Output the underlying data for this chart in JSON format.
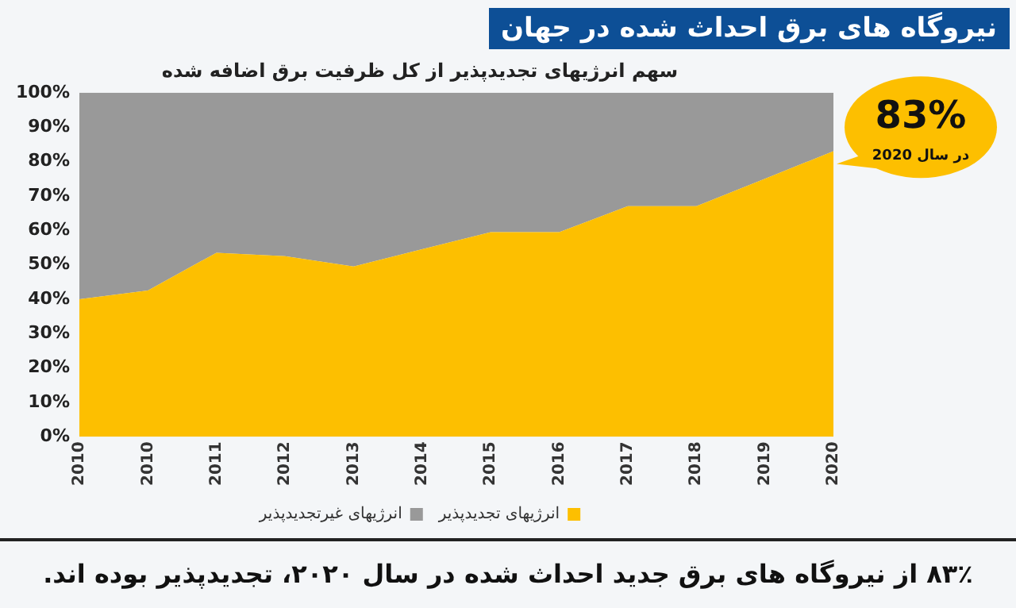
{
  "chart_data": {
    "type": "area",
    "stacked": true,
    "title": "نیروگاه های برق احداث شده در جهان",
    "subtitle": "سهم انرژیهای تجدیدپذیر از کل ظرفیت برق اضافه شده",
    "categories": [
      "2010",
      "2010",
      "2011",
      "2012",
      "2013",
      "2014",
      "2015",
      "2016",
      "2017",
      "2018",
      "2019",
      "2020"
    ],
    "series": [
      {
        "name": "انرژیهای تجدیدپذیر",
        "color": "#fdbf00",
        "values": [
          40,
          42.5,
          53.5,
          52.5,
          49.5,
          54.5,
          59.5,
          59.5,
          67,
          67,
          75,
          83
        ]
      },
      {
        "name": "انرژیهای غیرتجدیدپذیر",
        "color": "#999999",
        "values": [
          60,
          57.5,
          46.5,
          47.5,
          50.5,
          45.5,
          40.5,
          40.5,
          33,
          33,
          25,
          17
        ]
      }
    ],
    "ylim": [
      0,
      100
    ],
    "yticks": [
      {
        "value": 0,
        "label": "0%"
      },
      {
        "value": 10,
        "label": "10%"
      },
      {
        "value": 20,
        "label": "20%"
      },
      {
        "value": 30,
        "label": "30%"
      },
      {
        "value": 40,
        "label": "40%"
      },
      {
        "value": 50,
        "label": "50%"
      },
      {
        "value": 60,
        "label": "60%"
      },
      {
        "value": 70,
        "label": "70%"
      },
      {
        "value": 80,
        "label": "80%"
      },
      {
        "value": 90,
        "label": "90%"
      },
      {
        "value": 100,
        "label": "100%"
      }
    ],
    "grid": false,
    "legend": "bottom",
    "annotations": [
      {
        "text": "83%",
        "x": "2020",
        "y": 83
      },
      "در سال 2020",
      "۸۳٪ از نیروگاه های برق جدید احداث شده در سال ۲۰۲۰، تجدیدپذیر بوده اند."
    ]
  }
}
